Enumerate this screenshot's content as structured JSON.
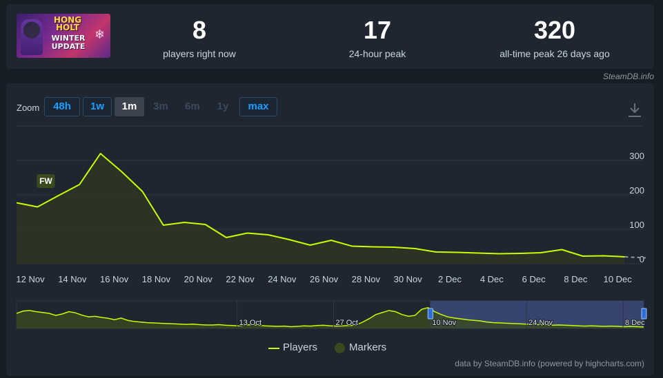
{
  "stats": {
    "thumb": {
      "line1": "HONG HOLT",
      "line2": "WINTER UPDATE",
      "flake": "❄"
    },
    "current": {
      "value": "8",
      "label": "players right now"
    },
    "peak24h": {
      "value": "17",
      "label": "24-hour peak"
    },
    "alltime": {
      "value": "320",
      "label": "all-time peak 26 days ago"
    }
  },
  "credit_top": "SteamDB.info",
  "zoom": {
    "label": "Zoom",
    "buttons": [
      {
        "label": "48h",
        "state": "normal"
      },
      {
        "label": "1w",
        "state": "normal"
      },
      {
        "label": "1m",
        "state": "active"
      },
      {
        "label": "3m",
        "state": "disabled"
      },
      {
        "label": "6m",
        "state": "disabled"
      },
      {
        "label": "1y",
        "state": "disabled"
      },
      {
        "label": "max",
        "state": "normal"
      }
    ]
  },
  "download_icon": "download-icon",
  "colors": {
    "line": "#c8ff00",
    "area": "#2d3524",
    "grid": "#2e3744",
    "navigator_selection": "#3b4a7a",
    "marker": "#3b4a1e"
  },
  "chart_data": [
    {
      "type": "line",
      "series": [
        {
          "name": "Players",
          "x": [
            "2023-11-11",
            "2023-11-12",
            "2023-11-13",
            "2023-11-14",
            "2023-11-15",
            "2023-11-16",
            "2023-11-17",
            "2023-11-18",
            "2023-11-19",
            "2023-11-20",
            "2023-11-21",
            "2023-11-22",
            "2023-11-23",
            "2023-11-24",
            "2023-11-25",
            "2023-11-26",
            "2023-11-27",
            "2023-11-28",
            "2023-11-29",
            "2023-11-30",
            "2023-12-01",
            "2023-12-02",
            "2023-12-03",
            "2023-12-04",
            "2023-12-05",
            "2023-12-06",
            "2023-12-07",
            "2023-12-08",
            "2023-12-09",
            "2023-12-10"
          ],
          "values": [
            177,
            165,
            198,
            230,
            320,
            268,
            210,
            112,
            120,
            114,
            76,
            89,
            84,
            70,
            54,
            68,
            51,
            49,
            48,
            44,
            34,
            33,
            31,
            29,
            30,
            32,
            41,
            22,
            23,
            20
          ]
        }
      ],
      "partial_point": {
        "x": "2023-12-11",
        "value": 17
      },
      "xticks": [
        "12 Nov",
        "14 Nov",
        "16 Nov",
        "18 Nov",
        "20 Nov",
        "22 Nov",
        "24 Nov",
        "26 Nov",
        "28 Nov",
        "30 Nov",
        "2 Dec",
        "4 Dec",
        "6 Dec",
        "8 Dec",
        "10 Dec"
      ],
      "yticks": [
        "0",
        "100",
        "200",
        "300"
      ],
      "ylim": [
        0,
        340
      ],
      "grid": true,
      "markers": [
        {
          "label": "FW",
          "x": "2023-11-12"
        }
      ],
      "legend": [
        {
          "label": "Players"
        },
        {
          "label": "Markers"
        }
      ],
      "legend_position": "bottom-center"
    },
    {
      "type": "area",
      "role": "navigator",
      "values": [
        52,
        60,
        62,
        58,
        55,
        52,
        45,
        50,
        58,
        54,
        46,
        40,
        42,
        38,
        35,
        30,
        36,
        28,
        24,
        22,
        20,
        19,
        18,
        17,
        16,
        15,
        14,
        15,
        13,
        12,
        12,
        13,
        11,
        10,
        9,
        12,
        13,
        11,
        9,
        8,
        7,
        8,
        6,
        7,
        9,
        8,
        10,
        11,
        9,
        8,
        9,
        10,
        12,
        22,
        34,
        48,
        55,
        62,
        58,
        48,
        42,
        45,
        66,
        72,
        58,
        48,
        40,
        36,
        33,
        30,
        28,
        26,
        22,
        20,
        19,
        18,
        17,
        16,
        15,
        14,
        13,
        12,
        11,
        12,
        11,
        10,
        9,
        8,
        9,
        8,
        7,
        8,
        7,
        6,
        7,
        6,
        5
      ],
      "xticks": [
        "13 Oct",
        "27 Oct",
        "10 Nov",
        "24 Nov",
        "8 Dec"
      ],
      "selection": {
        "from": "2023-11-10",
        "to": "2023-12-11"
      }
    }
  ],
  "credit_bottom": "data by SteamDB.info (powered by highcharts.com)"
}
